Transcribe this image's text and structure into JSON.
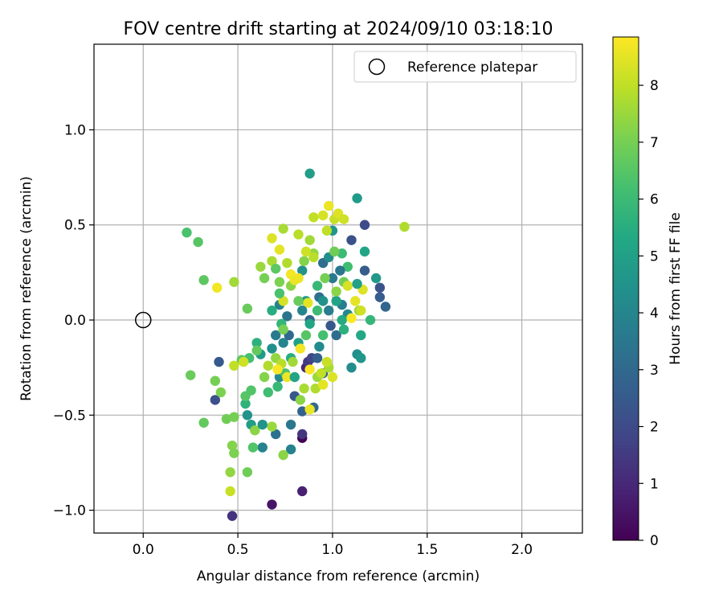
{
  "chart_data": {
    "type": "scatter",
    "title": "FOV centre drift starting at 2024/09/10 03:18:10",
    "xlabel": "Angular distance from reference (arcmin)",
    "ylabel": "Rotation from reference (arcmin)",
    "xlim": [
      -0.26,
      2.32
    ],
    "ylim": [
      -1.12,
      1.45
    ],
    "x_ticks": [
      0.0,
      0.5,
      1.0,
      1.5,
      2.0
    ],
    "x_tick_labels": [
      "0.0",
      "0.5",
      "1.0",
      "1.5",
      "2.0"
    ],
    "y_ticks": [
      -1.0,
      -0.5,
      0.0,
      0.5,
      1.0
    ],
    "y_tick_labels": [
      "−1.0",
      "−0.5",
      "0.0",
      "0.5",
      "1.0"
    ],
    "grid": true,
    "legend": {
      "placement": "upper-right",
      "entries": [
        "Reference platepar"
      ]
    },
    "reference": {
      "x": 0.0,
      "y": 0.0,
      "name": "Reference platepar"
    },
    "colorbar": {
      "label": "Hours from first FF file",
      "colormap": "viridis",
      "range": [
        0,
        8.85
      ],
      "ticks": [
        0,
        1,
        2,
        3,
        4,
        5,
        6,
        7,
        8
      ],
      "tick_labels": [
        "0",
        "1",
        "2",
        "3",
        "4",
        "5",
        "6",
        "7",
        "8"
      ]
    },
    "points": [
      [
        0.84,
        -0.62,
        0.0
      ],
      [
        0.68,
        -0.97,
        0.5
      ],
      [
        0.84,
        -0.9,
        0.8
      ],
      [
        0.47,
        -1.03,
        1.3
      ],
      [
        0.86,
        -0.25,
        1.0
      ],
      [
        0.84,
        -0.6,
        1.4
      ],
      [
        0.87,
        -0.22,
        1.5
      ],
      [
        0.89,
        -0.2,
        1.8
      ],
      [
        0.38,
        -0.42,
        2.2
      ],
      [
        0.4,
        -0.22,
        2.5
      ],
      [
        1.17,
        0.5,
        2.0
      ],
      [
        1.1,
        0.42,
        2.2
      ],
      [
        1.25,
        0.17,
        2.3
      ],
      [
        1.25,
        0.12,
        2.6
      ],
      [
        1.28,
        0.07,
        2.9
      ],
      [
        1.17,
        0.26,
        2.6
      ],
      [
        0.8,
        -0.4,
        2.4
      ],
      [
        0.84,
        -0.48,
        2.8
      ],
      [
        0.9,
        -0.46,
        3.0
      ],
      [
        0.95,
        -0.28,
        2.9
      ],
      [
        0.99,
        -0.03,
        2.4
      ],
      [
        1.02,
        -0.08,
        3.1
      ],
      [
        0.92,
        -0.2,
        2.7
      ],
      [
        0.88,
        0.0,
        2.8
      ],
      [
        0.78,
        -0.55,
        3.5
      ],
      [
        0.7,
        -0.6,
        3.3
      ],
      [
        0.78,
        -0.68,
        3.9
      ],
      [
        0.63,
        -0.67,
        3.9
      ],
      [
        0.95,
        0.3,
        3.2
      ],
      [
        1.0,
        0.22,
        3.6
      ],
      [
        0.93,
        0.12,
        3.3
      ],
      [
        0.98,
        0.05,
        3.7
      ],
      [
        1.05,
        0.08,
        3.8
      ],
      [
        1.08,
        0.03,
        4.1
      ],
      [
        0.76,
        0.02,
        3.4
      ],
      [
        0.72,
        0.08,
        3.9
      ],
      [
        0.7,
        -0.08,
        3.6
      ],
      [
        0.74,
        -0.12,
        4.0
      ],
      [
        0.72,
        -0.3,
        4.2
      ],
      [
        1.1,
        -0.25,
        4.3
      ],
      [
        1.13,
        -0.18,
        4.4
      ],
      [
        1.15,
        -0.2,
        4.6
      ],
      [
        1.23,
        0.22,
        4.7
      ],
      [
        1.13,
        0.64,
        4.8
      ],
      [
        0.88,
        0.77,
        4.9
      ],
      [
        1.0,
        0.47,
        4.6
      ],
      [
        0.84,
        0.26,
        4.5
      ],
      [
        0.86,
        0.1,
        4.7
      ],
      [
        0.98,
        0.33,
        4.3
      ],
      [
        0.93,
        -0.14,
        4.2
      ],
      [
        0.55,
        -0.5,
        4.5
      ],
      [
        0.57,
        -0.55,
        4.9
      ],
      [
        0.62,
        -0.18,
        4.8
      ],
      [
        0.68,
        -0.15,
        4.4
      ],
      [
        1.17,
        0.36,
        5.2
      ],
      [
        1.15,
        -0.08,
        5.3
      ],
      [
        1.05,
        0.0,
        5.4
      ],
      [
        1.02,
        0.1,
        5.1
      ],
      [
        0.88,
        -0.02,
        5.2
      ],
      [
        0.82,
        -0.12,
        5.0
      ],
      [
        0.78,
        -0.2,
        5.5
      ],
      [
        0.6,
        -0.12,
        5.6
      ],
      [
        0.54,
        -0.44,
        5.7
      ],
      [
        0.68,
        0.05,
        5.5
      ],
      [
        0.73,
        -0.02,
        5.8
      ],
      [
        0.92,
        0.18,
        5.9
      ],
      [
        1.08,
        0.28,
        6.1
      ],
      [
        1.05,
        0.35,
        6.0
      ],
      [
        0.95,
        -0.08,
        6.2
      ],
      [
        0.75,
        -0.28,
        6.3
      ],
      [
        0.71,
        -0.35,
        5.9
      ],
      [
        0.66,
        -0.38,
        6.1
      ],
      [
        0.58,
        -0.67,
        6.4
      ],
      [
        0.56,
        -0.2,
        6.2
      ],
      [
        0.54,
        -0.4,
        6.5
      ],
      [
        0.52,
        -0.21,
        6.6
      ],
      [
        0.57,
        -0.37,
        6.4
      ],
      [
        0.6,
        -0.16,
        6.7
      ],
      [
        0.23,
        0.46,
        6.3
      ],
      [
        0.29,
        0.41,
        6.5
      ],
      [
        0.32,
        0.21,
        6.6
      ],
      [
        0.55,
        0.06,
        6.8
      ],
      [
        0.25,
        -0.29,
        6.8
      ],
      [
        0.38,
        -0.32,
        7.0
      ],
      [
        0.41,
        -0.38,
        7.1
      ],
      [
        0.32,
        -0.54,
        6.7
      ],
      [
        0.44,
        -0.52,
        6.9
      ],
      [
        0.48,
        -0.51,
        7.0
      ],
      [
        0.47,
        -0.66,
        7.2
      ],
      [
        0.48,
        -0.7,
        7.1
      ],
      [
        0.55,
        -0.8,
        6.9
      ],
      [
        0.46,
        -0.8,
        7.4
      ],
      [
        0.74,
        -0.71,
        7.3
      ],
      [
        0.68,
        -0.56,
        7.5
      ],
      [
        0.72,
        0.2,
        7.1
      ],
      [
        0.78,
        0.18,
        7.3
      ],
      [
        0.85,
        0.31,
        7.2
      ],
      [
        0.9,
        0.35,
        7.4
      ],
      [
        0.96,
        0.22,
        7.0
      ],
      [
        1.02,
        0.15,
        7.3
      ],
      [
        1.06,
        0.2,
        6.9
      ],
      [
        1.14,
        0.05,
        7.5
      ],
      [
        0.64,
        -0.3,
        7.2
      ],
      [
        0.7,
        -0.2,
        7.4
      ],
      [
        0.79,
        -0.22,
        7.6
      ],
      [
        0.83,
        -0.42,
        7.3
      ],
      [
        0.92,
        -0.3,
        7.5
      ],
      [
        0.98,
        -0.25,
        7.7
      ],
      [
        1.38,
        0.49,
        7.8
      ],
      [
        0.74,
        0.48,
        7.7
      ],
      [
        0.82,
        0.45,
        7.9
      ],
      [
        0.88,
        0.42,
        7.6
      ],
      [
        0.9,
        0.33,
        7.9
      ],
      [
        0.76,
        0.3,
        7.8
      ],
      [
        0.68,
        0.31,
        7.7
      ],
      [
        0.62,
        0.28,
        7.5
      ],
      [
        0.48,
        0.2,
        7.6
      ],
      [
        0.66,
        -0.24,
        7.8
      ],
      [
        0.73,
        -0.23,
        7.9
      ],
      [
        0.85,
        -0.36,
        7.7
      ],
      [
        0.91,
        -0.36,
        7.8
      ],
      [
        0.94,
        -0.28,
        8.0
      ],
      [
        0.97,
        -0.22,
        8.1
      ],
      [
        0.46,
        -0.9,
        8.1
      ],
      [
        0.48,
        -0.24,
        8.0
      ],
      [
        0.53,
        -0.22,
        8.2
      ],
      [
        1.01,
        0.53,
        8.1
      ],
      [
        0.95,
        0.55,
        8.3
      ],
      [
        1.03,
        0.56,
        8.4
      ],
      [
        1.06,
        0.53,
        8.2
      ],
      [
        0.98,
        0.6,
        8.6
      ],
      [
        0.9,
        0.54,
        8.0
      ],
      [
        1.08,
        0.18,
        8.3
      ],
      [
        1.16,
        0.16,
        8.4
      ],
      [
        1.12,
        0.1,
        8.5
      ],
      [
        1.15,
        0.05,
        8.2
      ],
      [
        0.87,
        0.09,
        8.5
      ],
      [
        0.82,
        0.22,
        8.6
      ],
      [
        0.78,
        0.24,
        8.7
      ],
      [
        0.72,
        0.37,
        8.5
      ],
      [
        0.68,
        0.43,
        8.4
      ],
      [
        0.76,
        -0.3,
        8.6
      ],
      [
        0.83,
        -0.15,
        8.7
      ],
      [
        0.88,
        -0.26,
        8.8
      ],
      [
        0.95,
        -0.34,
        8.5
      ],
      [
        1.0,
        -0.3,
        8.4
      ],
      [
        0.88,
        -0.47,
        8.6
      ],
      [
        0.39,
        0.17,
        8.7
      ],
      [
        1.1,
        0.01,
        8.8
      ],
      [
        0.8,
        0.21,
        8.6
      ],
      [
        0.74,
        0.1,
        8.3
      ],
      [
        0.71,
        -0.26,
        8.8
      ],
      [
        0.86,
        0.36,
        8.2
      ],
      [
        0.97,
        0.47,
        8.0
      ],
      [
        0.92,
        0.05,
        6.0
      ],
      [
        1.06,
        -0.05,
        5.6
      ],
      [
        0.84,
        0.05,
        4.0
      ],
      [
        0.95,
        0.1,
        4.5
      ],
      [
        1.04,
        0.26,
        3.5
      ],
      [
        0.77,
        -0.08,
        3.0
      ],
      [
        0.8,
        -0.3,
        5.2
      ],
      [
        0.72,
        0.14,
        6.3
      ],
      [
        0.64,
        0.22,
        7.0
      ],
      [
        0.7,
        0.27,
        6.6
      ],
      [
        0.82,
        0.1,
        6.8
      ],
      [
        0.74,
        -0.05,
        7.0
      ],
      [
        0.86,
        -0.08,
        6.5
      ],
      [
        1.01,
        0.36,
        6.9
      ],
      [
        1.13,
        0.19,
        5.0
      ],
      [
        1.2,
        0.0,
        5.8
      ],
      [
        0.59,
        -0.58,
        7.3
      ],
      [
        0.63,
        -0.55,
        4.5
      ]
    ]
  }
}
